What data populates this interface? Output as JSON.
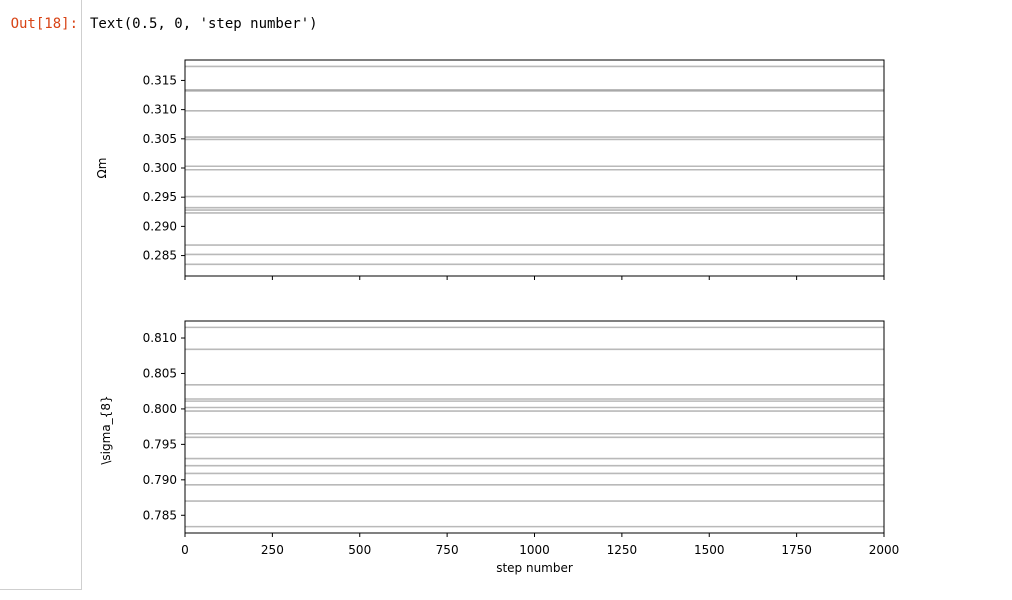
{
  "cell": {
    "prompt": "Out[18]:",
    "output_text": "Text(0.5, 0, 'step number')"
  },
  "chart_data": [
    {
      "type": "line",
      "ylabel": "Ωm",
      "ylim": [
        0.2815,
        0.3185
      ],
      "xlim": [
        0,
        2000
      ],
      "grid": false,
      "yticks": [
        0.285,
        0.29,
        0.295,
        0.3,
        0.305,
        0.31,
        0.315
      ],
      "ytick_labels": [
        "0.285",
        "0.290",
        "0.295",
        "0.300",
        "0.305",
        "0.310",
        "0.315"
      ],
      "series_color": "#808080",
      "chains": [
        0.2835,
        0.2852,
        0.2868,
        0.2923,
        0.2928,
        0.2932,
        0.2951,
        0.2997,
        0.3003,
        0.3049,
        0.3053,
        0.3098,
        0.3132,
        0.3134,
        0.3174
      ]
    },
    {
      "type": "line",
      "ylabel": "\\sigma_{8}",
      "xlabel": "step number",
      "ylim": [
        0.7825,
        0.8124
      ],
      "xlim": [
        0,
        2000
      ],
      "grid": false,
      "xticks": [
        0,
        250,
        500,
        750,
        1000,
        1250,
        1500,
        1750,
        2000
      ],
      "xtick_labels": [
        "0",
        "250",
        "500",
        "750",
        "1000",
        "1250",
        "1500",
        "1750",
        "2000"
      ],
      "yticks": [
        0.785,
        0.79,
        0.795,
        0.8,
        0.805,
        0.81
      ],
      "ytick_labels": [
        "0.785",
        "0.790",
        "0.795",
        "0.800",
        "0.805",
        "0.810"
      ],
      "series_color": "#808080",
      "chains": [
        0.7834,
        0.787,
        0.7893,
        0.7909,
        0.792,
        0.793,
        0.796,
        0.7965,
        0.7997,
        0.8002,
        0.8011,
        0.8014,
        0.8034,
        0.8084,
        0.8115
      ]
    }
  ]
}
